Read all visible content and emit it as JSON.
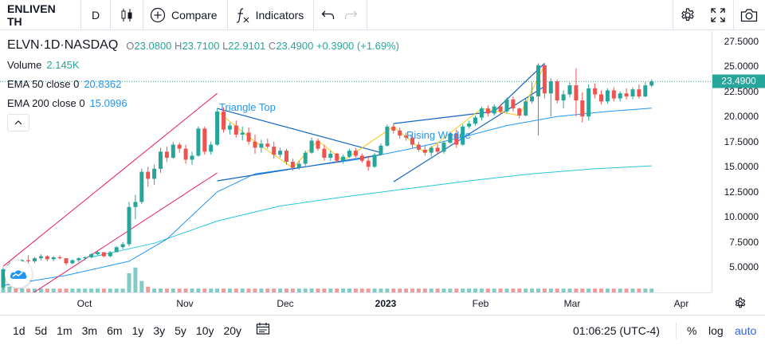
{
  "toolbar": {
    "symbol": "ENLIVEN TH",
    "interval": "D",
    "compare_label": "Compare",
    "indicators_label": "Indicators",
    "icons": [
      "candles-icon",
      "plus-circle-icon",
      "fx-icon",
      "undo-icon",
      "redo-icon",
      "gear-icon",
      "fullscreen-icon",
      "camera-icon"
    ]
  },
  "legend": {
    "ticker": "ELVN",
    "interval": "1D",
    "exchange": "NASDAQ",
    "open_label": "O",
    "open": "23.0800",
    "high_label": "H",
    "high": "23.7100",
    "low_label": "L",
    "low": "22.9101",
    "close_label": "C",
    "close": "23.4900",
    "change": "+0.3900 (+1.69%)",
    "volume_label": "Volume",
    "volume": "2.145K",
    "ema50_label": "EMA 50 close 0",
    "ema50": "20.8362",
    "ema200_label": "EMA 200 close 0",
    "ema200": "15.0996"
  },
  "price_axis": {
    "ticks": [
      "27.5000",
      "25.0000",
      "22.5000",
      "20.0000",
      "17.5000",
      "15.0000",
      "12.5000",
      "10.0000",
      "7.5000",
      "5.0000"
    ],
    "last_price": "23.4900"
  },
  "time_axis": {
    "ticks": [
      "Oct",
      "Nov",
      "Dec",
      "2023",
      "Feb",
      "Mar",
      "Apr"
    ]
  },
  "annotations": {
    "triangle": "Triangle Top",
    "wedge": "Rising Wedge"
  },
  "bottom_bar": {
    "ranges": [
      "1d",
      "5d",
      "1m",
      "3m",
      "6m",
      "1y",
      "3y",
      "5y",
      "10y",
      "20y"
    ],
    "clock": "01:06:25 (UTC-4)",
    "percent": "%",
    "log": "log",
    "auto": "auto"
  },
  "colors": {
    "up": "#26a69a",
    "down": "#ef5350",
    "ema50": "#2196f3",
    "ema200": "#26c6da",
    "channel": "#e91e63",
    "pattern": "#1565c0",
    "zigzag": "#f9c80e",
    "accent": "#2962ff"
  },
  "chart_data": {
    "type": "candlestick",
    "price_range": [
      2.5,
      28.5
    ],
    "x_range": [
      0,
      104
    ],
    "candles": [
      [
        3.0,
        5.0,
        2.8,
        4.8
      ],
      [
        4.8,
        5.6,
        4.7,
        5.3
      ],
      [
        5.3,
        5.5,
        5.0,
        5.2
      ],
      [
        5.2,
        5.8,
        5.1,
        5.7
      ],
      [
        5.7,
        6.2,
        5.4,
        5.6
      ],
      [
        5.6,
        6.0,
        5.4,
        5.9
      ],
      [
        5.9,
        6.3,
        5.7,
        6.1
      ],
      [
        6.1,
        6.2,
        5.6,
        5.8
      ],
      [
        5.8,
        6.1,
        5.6,
        6.0
      ],
      [
        6.0,
        6.2,
        5.8,
        5.9
      ],
      [
        5.9,
        5.9,
        5.2,
        5.4
      ],
      [
        5.4,
        5.8,
        5.3,
        5.7
      ],
      [
        5.7,
        6.0,
        5.5,
        5.9
      ],
      [
        5.9,
        6.1,
        5.7,
        6.0
      ],
      [
        6.0,
        6.4,
        5.9,
        6.3
      ],
      [
        6.3,
        6.6,
        6.2,
        6.5
      ],
      [
        6.5,
        6.5,
        6.0,
        6.1
      ],
      [
        6.1,
        6.6,
        6.0,
        6.5
      ],
      [
        6.5,
        7.1,
        6.5,
        7.0
      ],
      [
        7.0,
        7.5,
        6.8,
        7.3
      ],
      [
        7.3,
        11.5,
        7.1,
        11.0
      ],
      [
        11.0,
        12.2,
        9.8,
        11.5
      ],
      [
        11.5,
        14.8,
        11.3,
        14.5
      ],
      [
        14.5,
        15.0,
        13.0,
        13.8
      ],
      [
        13.8,
        15.2,
        13.2,
        14.8
      ],
      [
        14.8,
        16.9,
        14.4,
        16.5
      ],
      [
        16.5,
        17.0,
        15.5,
        15.9
      ],
      [
        15.9,
        17.5,
        15.8,
        17.2
      ],
      [
        17.2,
        17.4,
        16.4,
        16.8
      ],
      [
        16.8,
        17.2,
        15.3,
        15.7
      ],
      [
        15.7,
        16.5,
        15.2,
        16.1
      ],
      [
        16.1,
        19.0,
        16.0,
        18.8
      ],
      [
        18.8,
        19.0,
        16.2,
        16.5
      ],
      [
        16.5,
        17.5,
        16.2,
        17.2
      ],
      [
        17.2,
        20.8,
        17.1,
        20.5
      ],
      [
        20.5,
        20.9,
        18.4,
        18.7
      ],
      [
        18.7,
        19.4,
        18.2,
        19.1
      ],
      [
        19.1,
        19.6,
        17.9,
        18.2
      ],
      [
        18.2,
        19.0,
        17.6,
        18.4
      ],
      [
        18.4,
        18.9,
        17.2,
        17.5
      ],
      [
        17.5,
        18.2,
        16.3,
        16.9
      ],
      [
        16.9,
        17.7,
        16.4,
        17.3
      ],
      [
        17.3,
        17.8,
        16.8,
        17.0
      ],
      [
        17.0,
        17.5,
        15.8,
        16.2
      ],
      [
        16.2,
        16.9,
        15.9,
        16.6
      ],
      [
        16.6,
        16.8,
        15.2,
        15.5
      ],
      [
        15.5,
        15.8,
        14.6,
        14.9
      ],
      [
        14.9,
        15.6,
        14.7,
        15.3
      ],
      [
        15.3,
        16.6,
        15.1,
        16.4
      ],
      [
        16.4,
        17.9,
        16.3,
        17.6
      ],
      [
        17.6,
        17.8,
        16.6,
        16.8
      ],
      [
        16.8,
        17.2,
        15.6,
        15.9
      ],
      [
        15.9,
        16.6,
        15.6,
        16.3
      ],
      [
        16.3,
        16.4,
        15.4,
        15.6
      ],
      [
        15.6,
        16.2,
        15.3,
        16.0
      ],
      [
        16.0,
        16.8,
        15.9,
        16.6
      ],
      [
        16.6,
        16.9,
        15.9,
        16.1
      ],
      [
        16.1,
        16.3,
        15.4,
        15.6
      ],
      [
        15.6,
        16.1,
        14.6,
        15.0
      ],
      [
        15.0,
        16.4,
        14.9,
        16.2
      ],
      [
        16.2,
        17.3,
        16.1,
        17.1
      ],
      [
        17.1,
        19.2,
        17.0,
        19.0
      ],
      [
        19.0,
        19.3,
        18.3,
        18.6
      ],
      [
        18.6,
        18.9,
        17.8,
        18.1
      ],
      [
        18.1,
        18.4,
        17.6,
        17.9
      ],
      [
        17.9,
        18.2,
        16.9,
        17.2
      ],
      [
        17.2,
        17.5,
        16.5,
        16.7
      ],
      [
        16.7,
        17.1,
        16.1,
        16.4
      ],
      [
        16.4,
        17.1,
        16.0,
        16.9
      ],
      [
        16.9,
        17.3,
        16.2,
        16.5
      ],
      [
        16.5,
        17.6,
        16.3,
        17.4
      ],
      [
        17.4,
        18.5,
        17.3,
        18.3
      ],
      [
        18.3,
        18.7,
        16.9,
        17.2
      ],
      [
        17.2,
        19.2,
        17.1,
        19.0
      ],
      [
        19.0,
        19.6,
        18.8,
        19.3
      ],
      [
        19.3,
        20.1,
        19.1,
        19.9
      ],
      [
        19.9,
        21.0,
        19.6,
        20.8
      ],
      [
        20.8,
        21.1,
        20.0,
        20.3
      ],
      [
        20.3,
        21.2,
        20.1,
        21.0
      ],
      [
        21.0,
        21.2,
        20.2,
        20.5
      ],
      [
        20.5,
        21.9,
        20.3,
        21.7
      ],
      [
        21.7,
        22.0,
        20.5,
        20.8
      ],
      [
        20.8,
        20.9,
        19.8,
        20.1
      ],
      [
        20.1,
        21.8,
        20.0,
        21.5
      ],
      [
        21.5,
        23.4,
        21.3,
        22.0
      ],
      [
        22.0,
        25.3,
        18.1,
        25.1
      ],
      [
        25.1,
        25.3,
        21.8,
        22.3
      ],
      [
        22.3,
        23.8,
        20.0,
        23.5
      ],
      [
        23.5,
        23.7,
        21.3,
        21.6
      ],
      [
        21.6,
        22.6,
        20.8,
        22.2
      ],
      [
        22.2,
        23.4,
        21.9,
        23.1
      ],
      [
        23.1,
        24.8,
        20.0,
        21.6
      ],
      [
        21.6,
        22.4,
        19.4,
        20.0
      ],
      [
        20.0,
        23.2,
        19.6,
        22.8
      ],
      [
        22.8,
        23.3,
        21.8,
        22.2
      ],
      [
        22.2,
        22.6,
        21.2,
        21.5
      ],
      [
        21.5,
        22.8,
        21.3,
        22.6
      ],
      [
        22.6,
        22.9,
        21.5,
        21.8
      ],
      [
        21.8,
        22.5,
        21.5,
        22.3
      ],
      [
        22.3,
        22.8,
        21.7,
        22.0
      ],
      [
        22.0,
        22.9,
        21.7,
        22.7
      ],
      [
        22.7,
        23.2,
        21.8,
        22.0
      ],
      [
        22.0,
        23.4,
        21.9,
        23.1
      ],
      [
        23.08,
        23.71,
        22.9101,
        23.49
      ]
    ],
    "volume": [
      12,
      3,
      2,
      2,
      2,
      2,
      2,
      2,
      2,
      2,
      2,
      2,
      2,
      2,
      2,
      2,
      2,
      2,
      2,
      2,
      10,
      13,
      6,
      3,
      2,
      2,
      2,
      2,
      2,
      2,
      2,
      2,
      2,
      2,
      2,
      2,
      2,
      2,
      2,
      2,
      2,
      2,
      2,
      2,
      2,
      2,
      2,
      2,
      2,
      2,
      2,
      2,
      2,
      2,
      2,
      2,
      2,
      2,
      2,
      2,
      2,
      2,
      2,
      2,
      2,
      2,
      2,
      2,
      2,
      2,
      2,
      2,
      2,
      2,
      2,
      2,
      2,
      2,
      2,
      2,
      2,
      2,
      2,
      2,
      2,
      2,
      2,
      2,
      2,
      2,
      2,
      2,
      2,
      2,
      2,
      2,
      2,
      2,
      2,
      2,
      2,
      2,
      2,
      2
    ],
    "ema50": [
      [
        0,
        3.2
      ],
      [
        10,
        4.2
      ],
      [
        20,
        5.6
      ],
      [
        26,
        7.8
      ],
      [
        34,
        12.5
      ],
      [
        40,
        14.3
      ],
      [
        48,
        15.0
      ],
      [
        56,
        15.7
      ],
      [
        64,
        16.7
      ],
      [
        72,
        17.8
      ],
      [
        80,
        19.1
      ],
      [
        88,
        20.0
      ],
      [
        96,
        20.5
      ],
      [
        103,
        20.8362
      ]
    ],
    "ema200": [
      [
        14,
        6.0
      ],
      [
        24,
        7.4
      ],
      [
        34,
        9.6
      ],
      [
        44,
        11.1
      ],
      [
        54,
        12.0
      ],
      [
        64,
        12.8
      ],
      [
        74,
        13.6
      ],
      [
        84,
        14.3
      ],
      [
        94,
        14.8
      ],
      [
        103,
        15.0996
      ]
    ],
    "channel_upper": [
      [
        0,
        5.1
      ],
      [
        34,
        22.3
      ]
    ],
    "channel_lower": [
      [
        0,
        0.5
      ],
      [
        34,
        14.4
      ]
    ],
    "triangle_upper": [
      [
        34,
        20.8
      ],
      [
        60,
        16.4
      ]
    ],
    "triangle_lower": [
      [
        34,
        13.6
      ],
      [
        60,
        16.2
      ]
    ],
    "wedge_upper": [
      [
        62,
        19.3
      ],
      [
        78,
        20.5
      ],
      [
        86,
        25.3
      ]
    ],
    "wedge_lower": [
      [
        62,
        13.5
      ],
      [
        86,
        23.0
      ]
    ],
    "zigzag": [
      [
        34,
        20.5
      ],
      [
        40,
        17.5
      ],
      [
        46,
        14.9
      ],
      [
        50,
        17.6
      ],
      [
        54,
        15.6
      ],
      [
        62,
        19.0
      ],
      [
        67,
        16.4
      ],
      [
        76,
        20.8
      ],
      [
        82,
        20.1
      ],
      [
        86,
        25.1
      ]
    ]
  }
}
